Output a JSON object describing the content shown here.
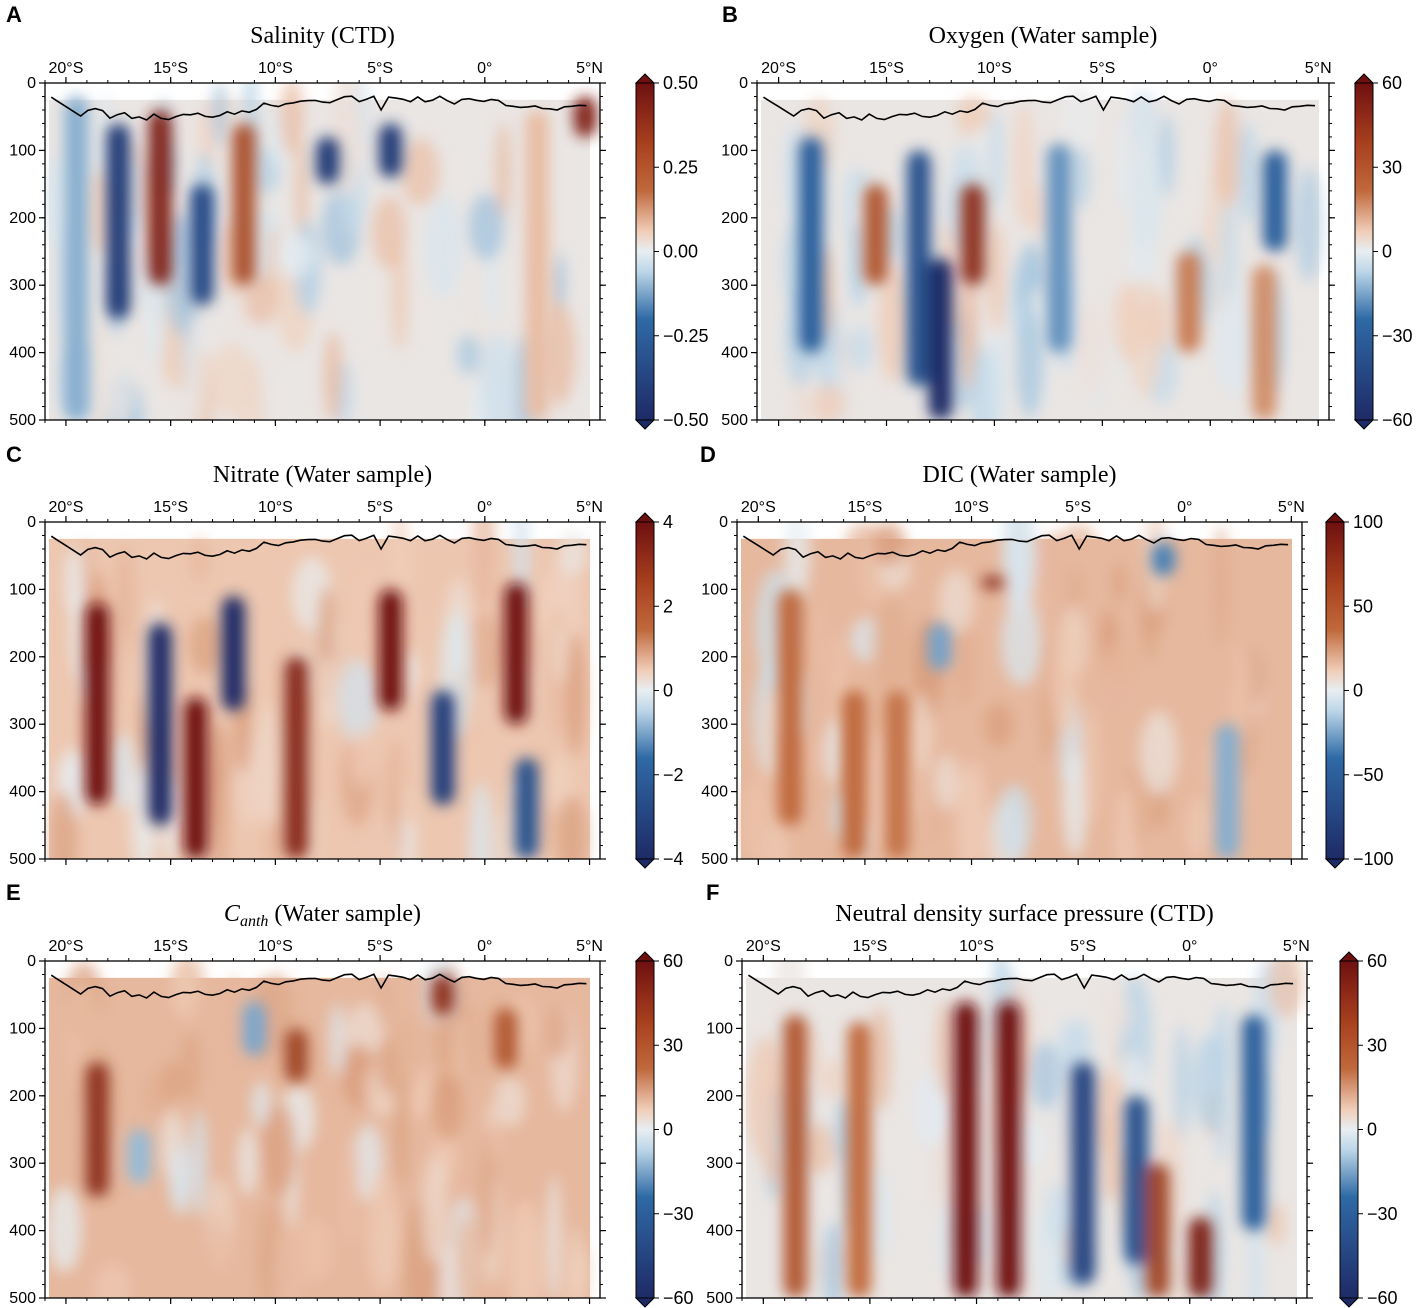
{
  "colors": {
    "neg_max": "#1e2a66",
    "neg_mid": "#2f6aa6",
    "neg_light": "#bcd6e8",
    "neutral": "#e8eef2",
    "pos_light": "#f0cdb8",
    "pos_mid": "#c0693c",
    "pos_max": "#6e1010",
    "line": "#000000"
  },
  "chart_data": [
    {
      "id": "A",
      "type": "heatmap",
      "label": "A",
      "title": "Salinity (CTD)",
      "x_ticks": [
        "20°S",
        "15°S",
        "10°S",
        "5°S",
        "0°",
        "5°N"
      ],
      "x_values": [
        -20,
        -15,
        -10,
        -5,
        0,
        5
      ],
      "x_range": [
        -21,
        5.5
      ],
      "ylim": [
        0,
        500
      ],
      "y_ticks": [
        "0",
        "100",
        "200",
        "300",
        "400",
        "500"
      ],
      "y_values": [
        0,
        100,
        200,
        300,
        400,
        500
      ],
      "colorbar": {
        "ticks": [
          "0.50",
          "0.25",
          "0.00",
          "−0.25",
          "−0.50"
        ],
        "values": [
          0.5,
          0.25,
          0,
          -0.25,
          -0.5
        ]
      },
      "features": [
        {
          "lat": -19.5,
          "top": 20,
          "bot": 500,
          "v": -0.15
        },
        {
          "lat": -17.5,
          "top": 60,
          "bot": 350,
          "v": -0.45
        },
        {
          "lat": -15.5,
          "top": 40,
          "bot": 300,
          "v": 0.45
        },
        {
          "lat": -13.5,
          "top": 150,
          "bot": 330,
          "v": -0.4
        },
        {
          "lat": -11.5,
          "top": 60,
          "bot": 300,
          "v": 0.35
        },
        {
          "lat": -7.5,
          "top": 80,
          "bot": 150,
          "v": -0.45
        },
        {
          "lat": -4.5,
          "top": 60,
          "bot": 140,
          "v": -0.45
        },
        {
          "lat": 2.5,
          "top": 40,
          "bot": 500,
          "v": 0.1
        },
        {
          "lat": 4.8,
          "top": 20,
          "bot": 80,
          "v": 0.45
        }
      ]
    },
    {
      "id": "B",
      "type": "heatmap",
      "label": "B",
      "title": "Oxygen (Water sample)",
      "x_ticks": [
        "20°S",
        "15°S",
        "10°S",
        "5°S",
        "0°",
        "5°N"
      ],
      "x_values": [
        -20,
        -15,
        -10,
        -5,
        0,
        5
      ],
      "x_range": [
        -21,
        5.5
      ],
      "ylim": [
        0,
        500
      ],
      "y_ticks": [
        "0",
        "100",
        "200",
        "300",
        "400",
        "500"
      ],
      "y_values": [
        0,
        100,
        200,
        300,
        400,
        500
      ],
      "colorbar": {
        "ticks": [
          "60",
          "30",
          "0",
          "−30",
          "−60"
        ],
        "values": [
          60,
          30,
          0,
          -30,
          -60
        ]
      },
      "features": [
        {
          "lat": -18.5,
          "top": 80,
          "bot": 400,
          "v": -40
        },
        {
          "lat": -15.5,
          "top": 150,
          "bot": 300,
          "v": 40
        },
        {
          "lat": -13.5,
          "top": 100,
          "bot": 450,
          "v": -45
        },
        {
          "lat": -12.5,
          "top": 260,
          "bot": 500,
          "v": -60
        },
        {
          "lat": -11,
          "top": 150,
          "bot": 300,
          "v": 50
        },
        {
          "lat": -7,
          "top": 90,
          "bot": 400,
          "v": -25
        },
        {
          "lat": -1,
          "top": 250,
          "bot": 400,
          "v": 30
        },
        {
          "lat": 3,
          "top": 100,
          "bot": 250,
          "v": -40
        },
        {
          "lat": 2.5,
          "top": 270,
          "bot": 500,
          "v": 25
        }
      ]
    },
    {
      "id": "C",
      "type": "heatmap",
      "label": "C",
      "title": "Nitrate (Water sample)",
      "x_ticks": [
        "20°S",
        "15°S",
        "10°S",
        "5°S",
        "0°",
        "5°N"
      ],
      "x_values": [
        -20,
        -15,
        -10,
        -5,
        0,
        5
      ],
      "x_range": [
        -21,
        5.5
      ],
      "ylim": [
        0,
        500
      ],
      "y_ticks": [
        "0",
        "100",
        "200",
        "300",
        "400",
        "500"
      ],
      "y_values": [
        0,
        100,
        200,
        300,
        400,
        500
      ],
      "colorbar": {
        "ticks": [
          "4",
          "2",
          "0",
          "−2",
          "−4"
        ],
        "values": [
          4,
          2,
          0,
          -2,
          -4
        ]
      },
      "features": [
        {
          "lat": -18.5,
          "top": 120,
          "bot": 420,
          "v": 4
        },
        {
          "lat": -15.5,
          "top": 150,
          "bot": 450,
          "v": -4
        },
        {
          "lat": -13.8,
          "top": 260,
          "bot": 500,
          "v": 4
        },
        {
          "lat": -12,
          "top": 110,
          "bot": 280,
          "v": -4
        },
        {
          "lat": -9,
          "top": 200,
          "bot": 500,
          "v": 3.5
        },
        {
          "lat": -4.5,
          "top": 100,
          "bot": 280,
          "v": 4
        },
        {
          "lat": -2,
          "top": 250,
          "bot": 420,
          "v": -3.5
        },
        {
          "lat": 1.5,
          "top": 90,
          "bot": 300,
          "v": 4
        },
        {
          "lat": 2,
          "top": 350,
          "bot": 500,
          "v": -3
        }
      ]
    },
    {
      "id": "D",
      "type": "heatmap",
      "label": "D",
      "title": "DIC (Water sample)",
      "x_ticks": [
        "20°S",
        "15°S",
        "10°S",
        "5°S",
        "0°",
        "5°N"
      ],
      "x_values": [
        -20,
        -15,
        -10,
        -5,
        0,
        5
      ],
      "x_range": [
        -21,
        5.5
      ],
      "ylim": [
        0,
        500
      ],
      "y_ticks": [
        "0",
        "100",
        "200",
        "300",
        "400",
        "500"
      ],
      "y_values": [
        0,
        100,
        200,
        300,
        400,
        500
      ],
      "colorbar": {
        "ticks": [
          "100",
          "50",
          "0",
          "−50",
          "−100"
        ],
        "values": [
          100,
          50,
          0,
          -50,
          -100
        ]
      },
      "features": [
        {
          "lat": -18.5,
          "top": 100,
          "bot": 450,
          "v": 60
        },
        {
          "lat": -15.5,
          "top": 250,
          "bot": 500,
          "v": 60
        },
        {
          "lat": -13.5,
          "top": 250,
          "bot": 500,
          "v": 55
        },
        {
          "lat": -11.5,
          "top": 150,
          "bot": 220,
          "v": -35
        },
        {
          "lat": -9,
          "top": 80,
          "bot": 100,
          "v": 85
        },
        {
          "lat": -1,
          "top": 30,
          "bot": 80,
          "v": -50
        },
        {
          "lat": 2,
          "top": 300,
          "bot": 500,
          "v": -30
        }
      ]
    },
    {
      "id": "E",
      "type": "heatmap",
      "label": "E",
      "title": "C",
      "title_sub": "anth",
      "title_rest": " (Water sample)",
      "x_ticks": [
        "20°S",
        "15°S",
        "10°S",
        "5°S",
        "0°",
        "5°N"
      ],
      "x_values": [
        -20,
        -15,
        -10,
        -5,
        0,
        5
      ],
      "x_range": [
        -21,
        5.5
      ],
      "ylim": [
        0,
        500
      ],
      "y_ticks": [
        "0",
        "100",
        "200",
        "300",
        "400",
        "500"
      ],
      "y_values": [
        0,
        100,
        200,
        300,
        400,
        500
      ],
      "colorbar": {
        "ticks": [
          "60",
          "30",
          "0",
          "−30",
          "−60"
        ],
        "values": [
          60,
          30,
          0,
          -30,
          -60
        ]
      },
      "features": [
        {
          "lat": -18.5,
          "top": 150,
          "bot": 350,
          "v": 50
        },
        {
          "lat": -16.5,
          "top": 250,
          "bot": 330,
          "v": -15
        },
        {
          "lat": -11,
          "top": 60,
          "bot": 140,
          "v": -20
        },
        {
          "lat": -9,
          "top": 100,
          "bot": 180,
          "v": 45
        },
        {
          "lat": -2,
          "top": 20,
          "bot": 80,
          "v": 50
        },
        {
          "lat": 1,
          "top": 70,
          "bot": 160,
          "v": 40
        }
      ]
    },
    {
      "id": "F",
      "type": "heatmap",
      "label": "F",
      "title": "Neutral density surface pressure (CTD)",
      "x_ticks": [
        "20°S",
        "15°S",
        "10°S",
        "5°S",
        "0°",
        "5°N"
      ],
      "x_values": [
        -20,
        -15,
        -10,
        -5,
        0,
        5
      ],
      "x_range": [
        -21,
        5.5
      ],
      "ylim": [
        0,
        500
      ],
      "y_ticks": [
        "0",
        "100",
        "200",
        "300",
        "400",
        "500"
      ],
      "y_values": [
        0,
        100,
        200,
        300,
        400,
        500
      ],
      "colorbar": {
        "ticks": [
          "60",
          "30",
          "0",
          "−30",
          "−60"
        ],
        "values": [
          60,
          30,
          0,
          -30,
          -60
        ]
      },
      "features": [
        {
          "lat": -18.5,
          "top": 80,
          "bot": 500,
          "v": 40
        },
        {
          "lat": -15.5,
          "top": 90,
          "bot": 500,
          "v": 35
        },
        {
          "lat": -10.5,
          "top": 60,
          "bot": 500,
          "v": 60
        },
        {
          "lat": -8.5,
          "top": 60,
          "bot": 500,
          "v": 60
        },
        {
          "lat": -5,
          "top": 150,
          "bot": 480,
          "v": -50
        },
        {
          "lat": -2.5,
          "top": 200,
          "bot": 450,
          "v": -45
        },
        {
          "lat": -1.5,
          "top": 300,
          "bot": 500,
          "v": 45
        },
        {
          "lat": 0.5,
          "top": 380,
          "bot": 500,
          "v": 55
        },
        {
          "lat": 3,
          "top": 80,
          "bot": 400,
          "v": -40
        }
      ]
    }
  ]
}
